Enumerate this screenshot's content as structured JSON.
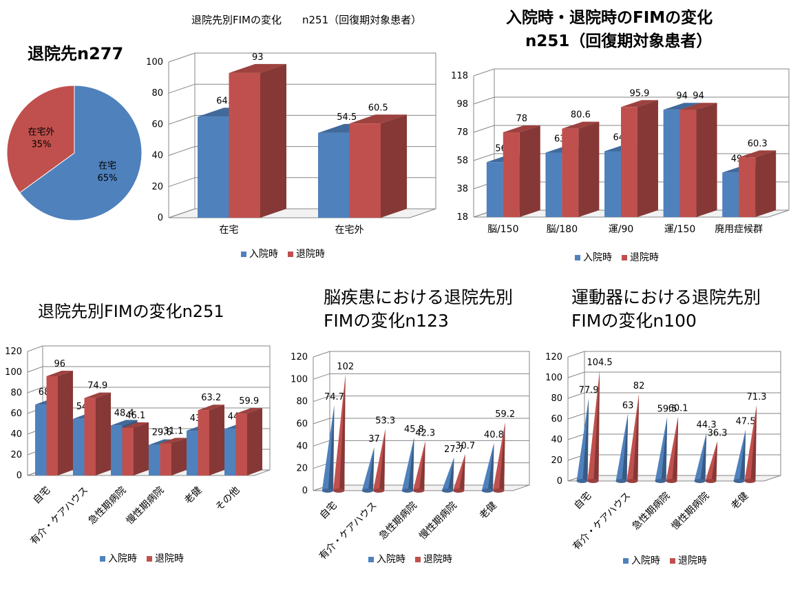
{
  "colors": {
    "admission": "#4f81bd",
    "discharge": "#c0504d",
    "grid": "#868686"
  },
  "legend": {
    "admission": "入院時",
    "discharge": "退院時"
  },
  "chart_data": [
    {
      "id": "pie",
      "type": "pie",
      "title": "退院先n277",
      "slices": [
        {
          "label": "在宅",
          "pct_label": "65%",
          "value": 65
        },
        {
          "label": "在宅外",
          "pct_label": "35%",
          "value": 35
        }
      ]
    },
    {
      "id": "c1",
      "type": "bar",
      "title": "退院先別FIMの変化　　n251（回復期対象患者）",
      "categories": [
        "在宅",
        "在宅外"
      ],
      "ylim": [
        0,
        100
      ],
      "yticks": [
        0,
        20,
        40,
        60,
        80,
        100
      ],
      "series": [
        {
          "name": "入院時",
          "values": [
            64.9,
            54.5
          ]
        },
        {
          "name": "退院時",
          "values": [
            93,
            60.5
          ]
        }
      ]
    },
    {
      "id": "c2",
      "type": "bar",
      "title": "入院時・退院時のFIMの変化",
      "subtitle": "n251（回復期対象患者）",
      "categories": [
        "脳/150",
        "脳/180",
        "運/90",
        "運/150",
        "廃用症候群"
      ],
      "ylim": [
        18,
        118
      ],
      "yticks": [
        18,
        38,
        58,
        78,
        98,
        118
      ],
      "series": [
        {
          "name": "入院時",
          "values": [
            56.9,
            63.6,
            64.6,
            94,
            49.5
          ]
        },
        {
          "name": "退院時",
          "values": [
            78,
            80.6,
            95.9,
            94,
            60.3
          ]
        }
      ]
    },
    {
      "id": "c3",
      "type": "bar",
      "title": "退院先別FIMの変化n251",
      "categories": [
        "自宅",
        "有介・ケアハウス",
        "急性期病院",
        "慢性期病院",
        "老健",
        "その他"
      ],
      "ylim": [
        0,
        120
      ],
      "yticks": [
        0,
        20,
        40,
        60,
        80,
        100,
        120
      ],
      "series": [
        {
          "name": "入院時",
          "values": [
            68.6,
            54.8,
            48.4,
            29.6,
            43.3,
            44.9
          ]
        },
        {
          "name": "退院時",
          "values": [
            96,
            74.9,
            46.1,
            31.1,
            63.2,
            59.9
          ]
        }
      ]
    },
    {
      "id": "c4",
      "type": "bar",
      "style": "cone",
      "title": "脳疾患における退院先別",
      "subtitle": "FIMの変化n123",
      "categories": [
        "自宅",
        "有介・ケアハウス",
        "急性期病院",
        "慢性期病院",
        "老健"
      ],
      "ylim": [
        0,
        120
      ],
      "yticks": [
        0,
        20,
        40,
        60,
        80,
        100,
        120
      ],
      "series": [
        {
          "name": "入院時",
          "values": [
            74.7,
            37,
            45.8,
            27.7,
            40.8
          ]
        },
        {
          "name": "退院時",
          "values": [
            102,
            53.3,
            42.3,
            30.7,
            59.2
          ]
        }
      ]
    },
    {
      "id": "c5",
      "type": "bar",
      "style": "cone",
      "title": "運動器における退院先別",
      "subtitle": "FIMの変化n100",
      "categories": [
        "自宅",
        "有介・ケアハウス",
        "急性期病院",
        "慢性期病院",
        "老健"
      ],
      "ylim": [
        0,
        120
      ],
      "yticks": [
        0,
        20,
        40,
        60,
        80,
        100,
        120
      ],
      "series": [
        {
          "name": "入院時",
          "values": [
            77.9,
            63,
            59.5,
            44.3,
            47.5
          ]
        },
        {
          "name": "退院時",
          "values": [
            104.5,
            82,
            60.1,
            36.3,
            71.3
          ]
        }
      ]
    }
  ]
}
